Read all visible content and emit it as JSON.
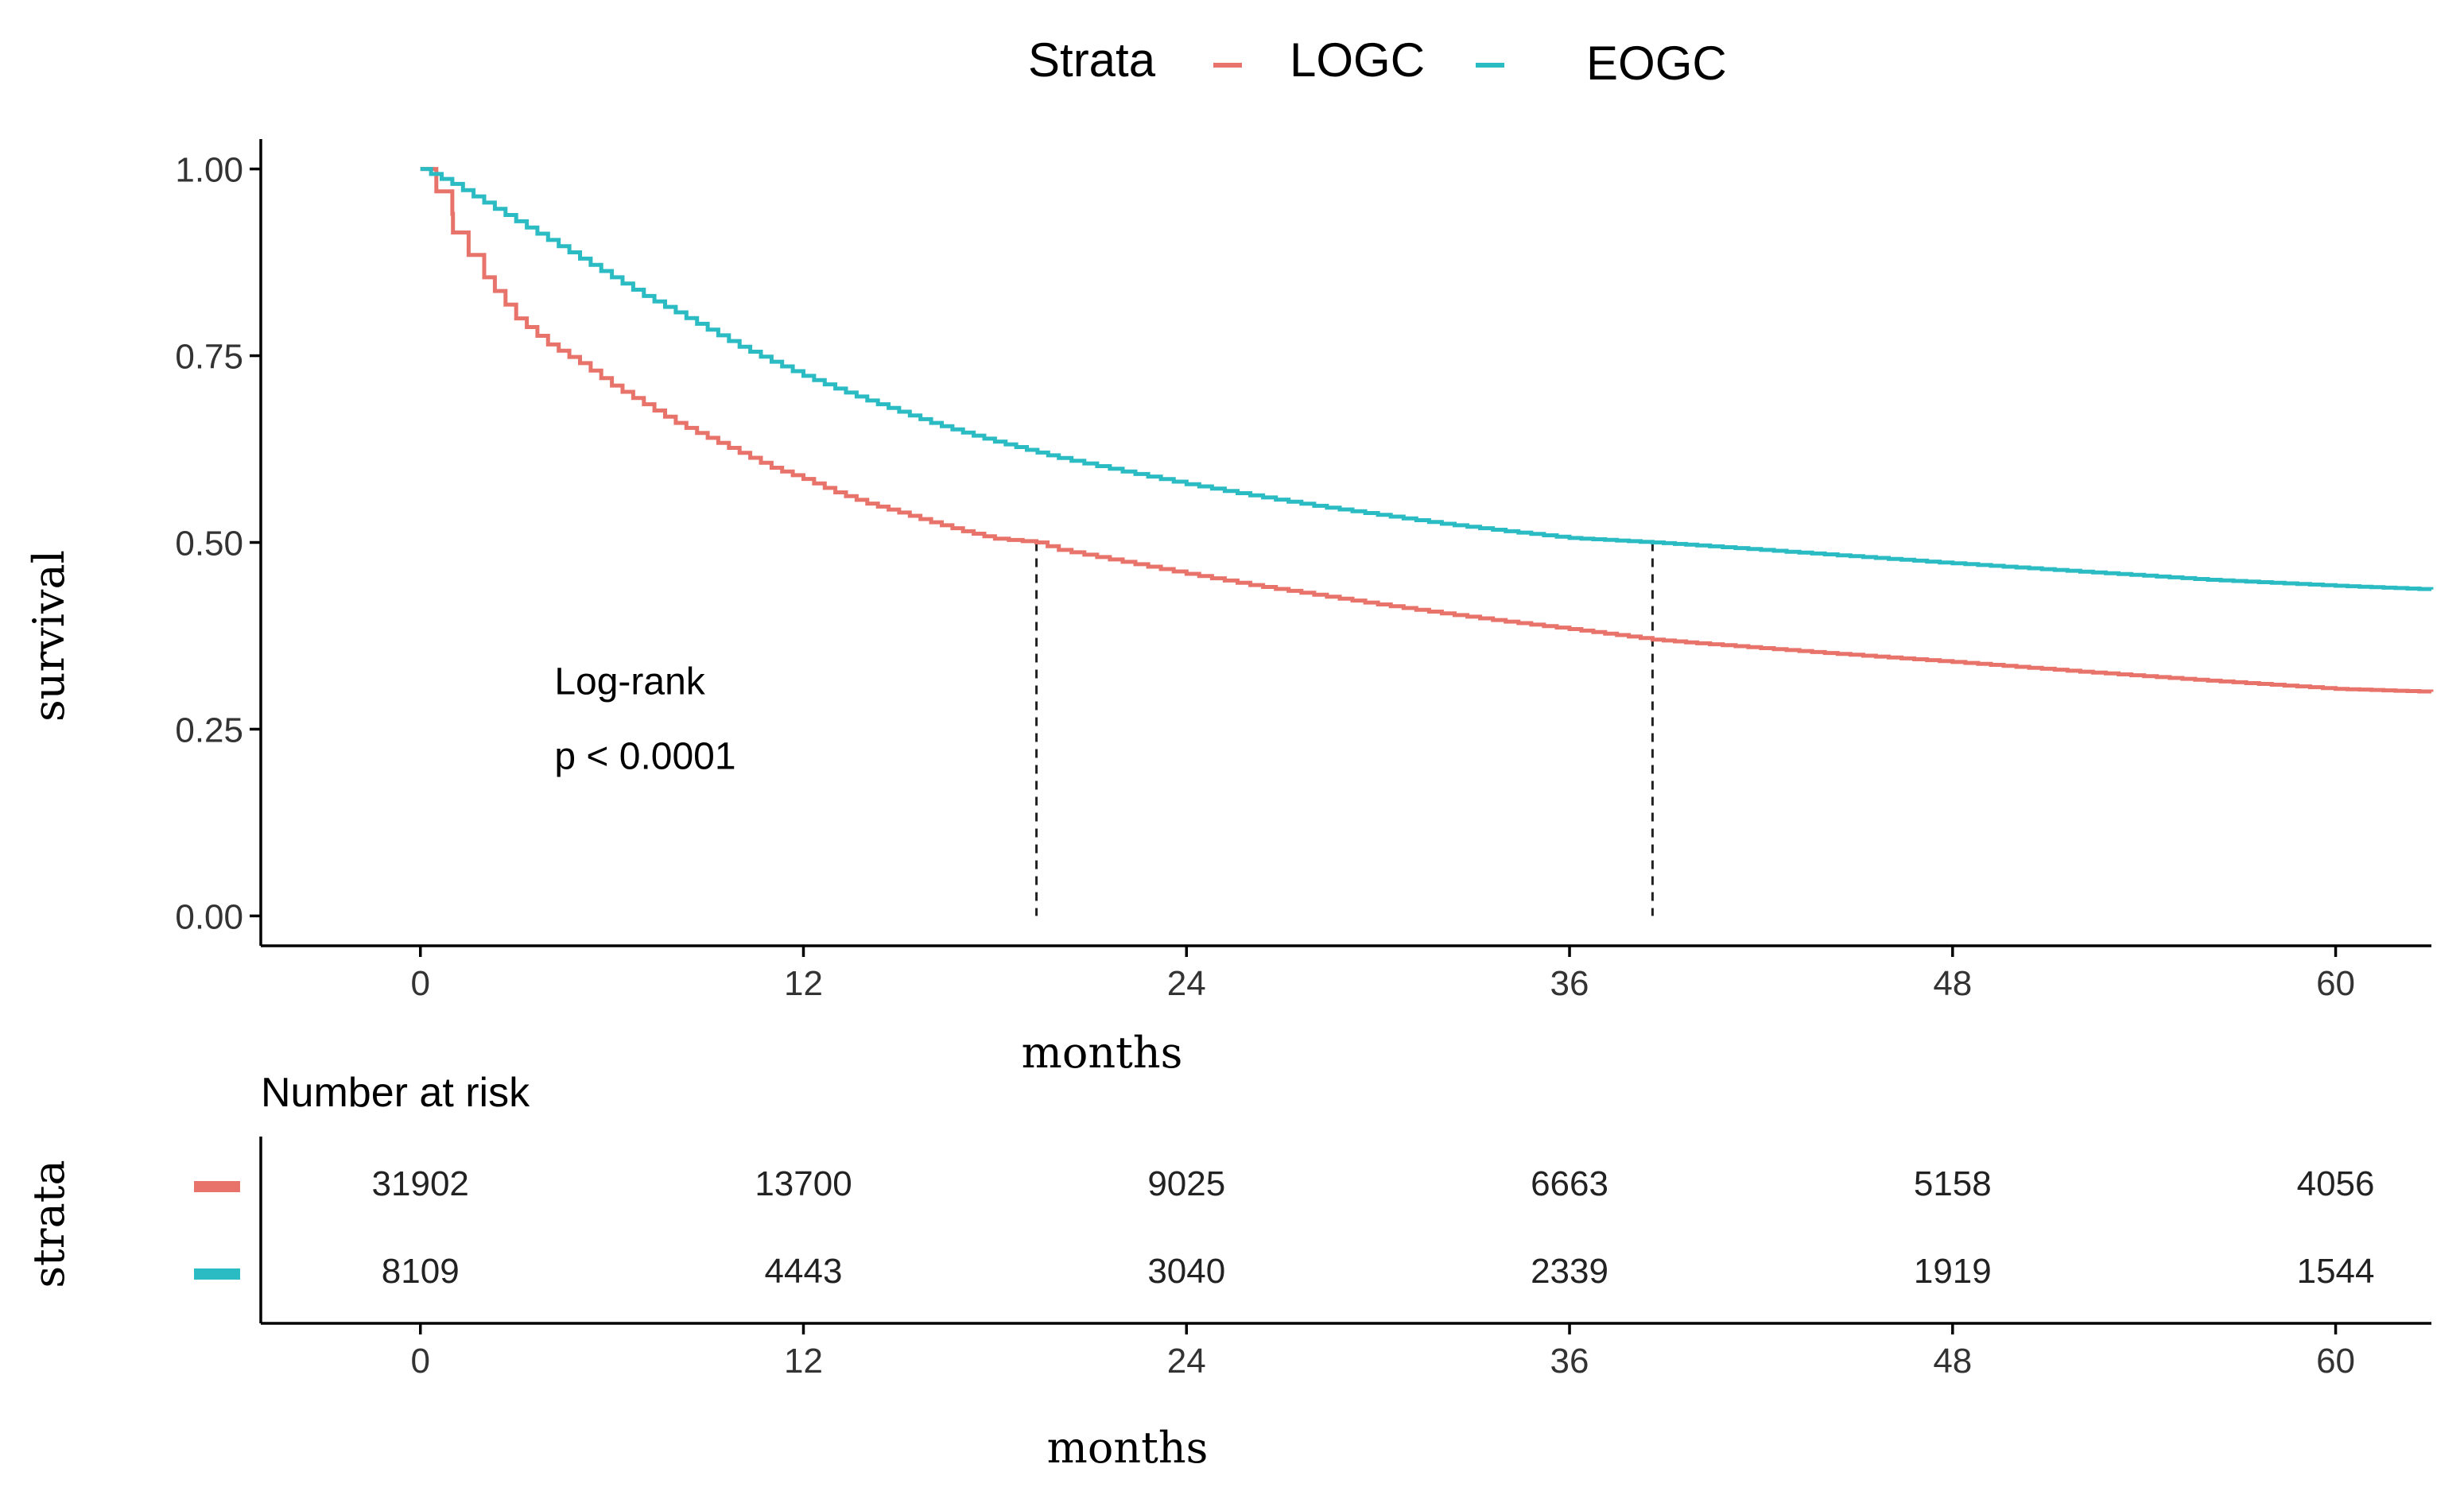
{
  "chart_data": {
    "type": "line",
    "subtype": "kaplan-meier",
    "legend": {
      "title": "Strata",
      "position": "top",
      "entries": [
        {
          "name": "LOGC",
          "color": "#E8736A"
        },
        {
          "name": "EOGC",
          "color": "#2BBBC2"
        }
      ]
    },
    "xlabel": "months",
    "ylabel": "survival",
    "xlim": [
      -5,
      63
    ],
    "ylim": [
      -0.04,
      1.04
    ],
    "xticks": [
      0,
      12,
      24,
      36,
      48,
      60
    ],
    "yticks": [
      0,
      0.25,
      0.5,
      0.75,
      1
    ],
    "ytick_labels": [
      "0.00",
      "0.25",
      "0.50",
      "0.75",
      "1.00"
    ],
    "grid": false,
    "annotation": {
      "line1": "Log-rank",
      "line2": "p < 0.0001",
      "x": 4.2,
      "y1": 0.297,
      "y2": 0.197
    },
    "median_lines": [
      {
        "x": 19.3,
        "y": 0.5
      },
      {
        "x": 38.6,
        "y": 0.5
      }
    ],
    "series": [
      {
        "name": "LOGC",
        "color": "#E8736A",
        "x": [
          0,
          0.5,
          1,
          1.02,
          2,
          3,
          4,
          5,
          6,
          7,
          8,
          9,
          10,
          11,
          12,
          13,
          14,
          15,
          16,
          17,
          18,
          19.3,
          20,
          22,
          24,
          26,
          28,
          30,
          32,
          34,
          36,
          38.6,
          40,
          44,
          48,
          52,
          56,
          60,
          63
        ],
        "y": [
          1.0,
          0.97,
          0.94,
          0.915,
          0.855,
          0.8,
          0.765,
          0.74,
          0.71,
          0.685,
          0.66,
          0.64,
          0.62,
          0.6,
          0.585,
          0.567,
          0.552,
          0.54,
          0.527,
          0.515,
          0.505,
          0.5,
          0.49,
          0.474,
          0.458,
          0.443,
          0.43,
          0.417,
          0.405,
          0.394,
          0.384,
          0.37,
          0.365,
          0.352,
          0.34,
          0.327,
          0.315,
          0.304,
          0.3
        ]
      },
      {
        "name": "EOGC",
        "color": "#2BBBC2",
        "x": [
          0,
          1,
          2,
          3,
          4,
          5,
          6,
          7,
          8,
          9,
          10,
          11,
          12,
          13,
          14,
          15,
          16,
          17,
          18,
          19,
          20,
          22,
          24,
          26,
          28,
          30,
          32,
          34,
          36,
          38.6,
          40,
          44,
          48,
          52,
          56,
          60,
          63
        ],
        "y": [
          1.0,
          0.98,
          0.955,
          0.93,
          0.905,
          0.88,
          0.855,
          0.83,
          0.808,
          0.785,
          0.762,
          0.742,
          0.723,
          0.706,
          0.69,
          0.675,
          0.66,
          0.647,
          0.635,
          0.624,
          0.613,
          0.595,
          0.578,
          0.563,
          0.549,
          0.537,
          0.525,
          0.515,
          0.506,
          0.5,
          0.496,
          0.484,
          0.472,
          0.461,
          0.45,
          0.442,
          0.437
        ]
      }
    ],
    "risk_table": {
      "title": "Number at risk",
      "ylabel": "strata",
      "xlabel": "months",
      "times": [
        0,
        12,
        24,
        36,
        48,
        60
      ],
      "rows": [
        {
          "name": "LOGC",
          "color": "#E8736A",
          "values": [
            31902,
            13700,
            9025,
            6663,
            5158,
            4056
          ]
        },
        {
          "name": "EOGC",
          "color": "#2BBBC2",
          "values": [
            8109,
            4443,
            3040,
            2339,
            1919,
            1544
          ]
        }
      ]
    }
  }
}
